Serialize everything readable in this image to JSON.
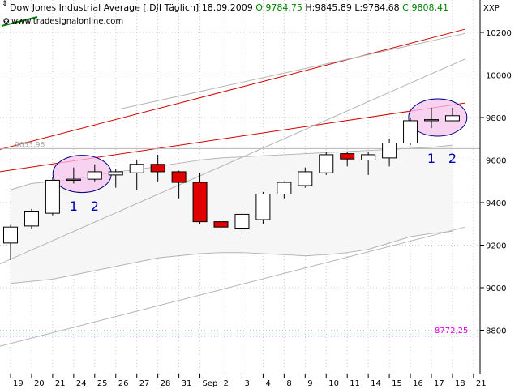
{
  "header": {
    "title": "Dow Jones Industrial Average [.DJI  Täglich] 18.09.2009",
    "ohlc": [
      {
        "text": " O:9784,75",
        "color": "#008000"
      },
      {
        "text": " H:9845,89",
        "color": "#000000"
      },
      {
        "text": " L:9784,68",
        "color": "#000000"
      },
      {
        "text": " C:9808,41",
        "color": "#008000"
      }
    ],
    "website": "www.tradesignalonline.com",
    "symbol": "XXP"
  },
  "labels": {
    "ref_level_text": "9653,96",
    "ref_level_value": 9653.96,
    "low_marker_text": "8772,25",
    "low_marker_value": 8772.25,
    "ellipse_numbers": [
      "1",
      "2",
      "1",
      "2"
    ]
  },
  "colors": {
    "up_candle": "#ffffff",
    "down_candle": "#e00000",
    "trend_red": "#d40000",
    "channel_gray": "#b4b4b4",
    "ellipse_fill": "#f4c4ec",
    "ellipse_stroke": "#000080",
    "number_blue": "#0000b4",
    "low_marker": "#e000e0"
  },
  "chart_data": {
    "type": "candlestick",
    "y_ticks": [
      "8800",
      "9000",
      "9200",
      "9400",
      "9600",
      "9800",
      "10000",
      "10200"
    ],
    "ylim": [
      8700,
      10300
    ],
    "x_labels": [
      "19",
      "20",
      "21",
      "24",
      "25",
      "26",
      "27",
      "28",
      "31",
      "Sep",
      "2",
      "3",
      "4",
      "8",
      "9",
      "10",
      "11",
      "14",
      "15",
      "16",
      "17",
      "18",
      "21"
    ],
    "candles": [
      {
        "o": 9210,
        "h": 9295,
        "l": 9130,
        "c": 9285
      },
      {
        "o": 9290,
        "h": 9370,
        "l": 9275,
        "c": 9360
      },
      {
        "o": 9350,
        "h": 9520,
        "l": 9340,
        "c": 9505
      },
      {
        "o": 9505,
        "h": 9565,
        "l": 9490,
        "c": 9510
      },
      {
        "o": 9510,
        "h": 9580,
        "l": 9500,
        "c": 9545
      },
      {
        "o": 9530,
        "h": 9560,
        "l": 9470,
        "c": 9545
      },
      {
        "o": 9540,
        "h": 9600,
        "l": 9460,
        "c": 9580
      },
      {
        "o": 9580,
        "h": 9625,
        "l": 9500,
        "c": 9545
      },
      {
        "o": 9545,
        "h": 9550,
        "l": 9420,
        "c": 9495
      },
      {
        "o": 9495,
        "h": 9540,
        "l": 9300,
        "c": 9310
      },
      {
        "o": 9310,
        "h": 9320,
        "l": 9260,
        "c": 9285
      },
      {
        "o": 9280,
        "h": 9350,
        "l": 9250,
        "c": 9345
      },
      {
        "o": 9320,
        "h": 9450,
        "l": 9300,
        "c": 9440
      },
      {
        "o": 9440,
        "h": 9500,
        "l": 9420,
        "c": 9495
      },
      {
        "o": 9480,
        "h": 9565,
        "l": 9470,
        "c": 9545
      },
      {
        "o": 9540,
        "h": 9640,
        "l": 9530,
        "c": 9625
      },
      {
        "o": 9630,
        "h": 9640,
        "l": 9570,
        "c": 9605
      },
      {
        "o": 9600,
        "h": 9640,
        "l": 9530,
        "c": 9625
      },
      {
        "o": 9610,
        "h": 9700,
        "l": 9570,
        "c": 9680
      },
      {
        "o": 9680,
        "h": 9800,
        "l": 9670,
        "c": 9785
      },
      {
        "o": 9785,
        "h": 9846,
        "l": 9750,
        "c": 9790
      },
      {
        "o": 9784.75,
        "h": 9845.89,
        "l": 9784.68,
        "c": 9808.41
      }
    ],
    "trendlines": [
      {
        "name": "upper-red-channel",
        "from": {
          "i": -0.5,
          "v": 9650
        },
        "to": {
          "i": 21.6,
          "v": 10215
        },
        "color": "#d40000"
      },
      {
        "name": "lower-red-channel",
        "from": {
          "i": -0.5,
          "v": 9545
        },
        "to": {
          "i": 21.6,
          "v": 9868
        },
        "color": "#d40000"
      },
      {
        "name": "gray-upper-1",
        "from": {
          "i": 5.2,
          "v": 9840
        },
        "to": {
          "i": 21.6,
          "v": 10195
        },
        "color": "#b4b4b4"
      },
      {
        "name": "gray-mid",
        "from": {
          "i": -0.5,
          "v": 9112
        },
        "to": {
          "i": 21.6,
          "v": 10075
        },
        "color": "#b4b4b4"
      },
      {
        "name": "gray-lower",
        "from": {
          "i": -0.5,
          "v": 8725
        },
        "to": {
          "i": 21.6,
          "v": 9285
        },
        "color": "#b4b4b4"
      }
    ],
    "horizontal_line": {
      "value": 9653.96,
      "color": "#b4b4b4"
    },
    "envelope": {
      "upper": [
        9460,
        9490,
        9500,
        9510,
        9525,
        9545,
        9555,
        9570,
        9585,
        9600,
        9610,
        9615,
        9620,
        9625,
        9630,
        9635,
        9640,
        9645,
        9650,
        9655,
        9660,
        9670
      ],
      "lower": [
        9020,
        9030,
        9040,
        9060,
        9080,
        9100,
        9120,
        9140,
        9150,
        9160,
        9165,
        9165,
        9160,
        9155,
        9150,
        9155,
        9165,
        9180,
        9210,
        9240,
        9255,
        9265
      ]
    },
    "ellipses": [
      {
        "ci": 3.4,
        "cv": 9535,
        "label_i": [
          3,
          4
        ],
        "label_v": 9385
      },
      {
        "ci": 20.3,
        "cv": 9800,
        "label_i": [
          20,
          21
        ],
        "label_v": 9610
      }
    ]
  }
}
